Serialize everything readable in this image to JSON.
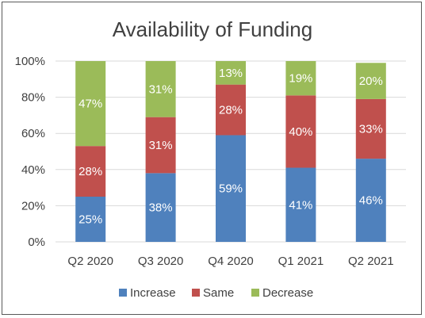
{
  "chart_data": {
    "type": "bar",
    "stacked": true,
    "title": "Availability of Funding",
    "categories": [
      "Q2 2020",
      "Q3 2020",
      "Q4 2020",
      "Q1 2021",
      "Q2 2021"
    ],
    "series": [
      {
        "name": "Increase",
        "color": "#4f81bd",
        "values": [
          25,
          38,
          59,
          41,
          46
        ],
        "labels": [
          "25%",
          "38%",
          "59%",
          "41%",
          "46%"
        ]
      },
      {
        "name": "Same",
        "color": "#c0504d",
        "values": [
          28,
          31,
          28,
          40,
          33
        ],
        "labels": [
          "28%",
          "31%",
          "28%",
          "40%",
          "33%"
        ]
      },
      {
        "name": "Decrease",
        "color": "#9bbb59",
        "values": [
          47,
          31,
          13,
          19,
          20
        ],
        "labels": [
          "47%",
          "31%",
          "13%",
          "19%",
          "20%"
        ]
      }
    ],
    "y_ticks": [
      "0%",
      "20%",
      "40%",
      "60%",
      "80%",
      "100%"
    ],
    "ylim": [
      0,
      100
    ],
    "grid": true,
    "legend_position": "bottom"
  }
}
